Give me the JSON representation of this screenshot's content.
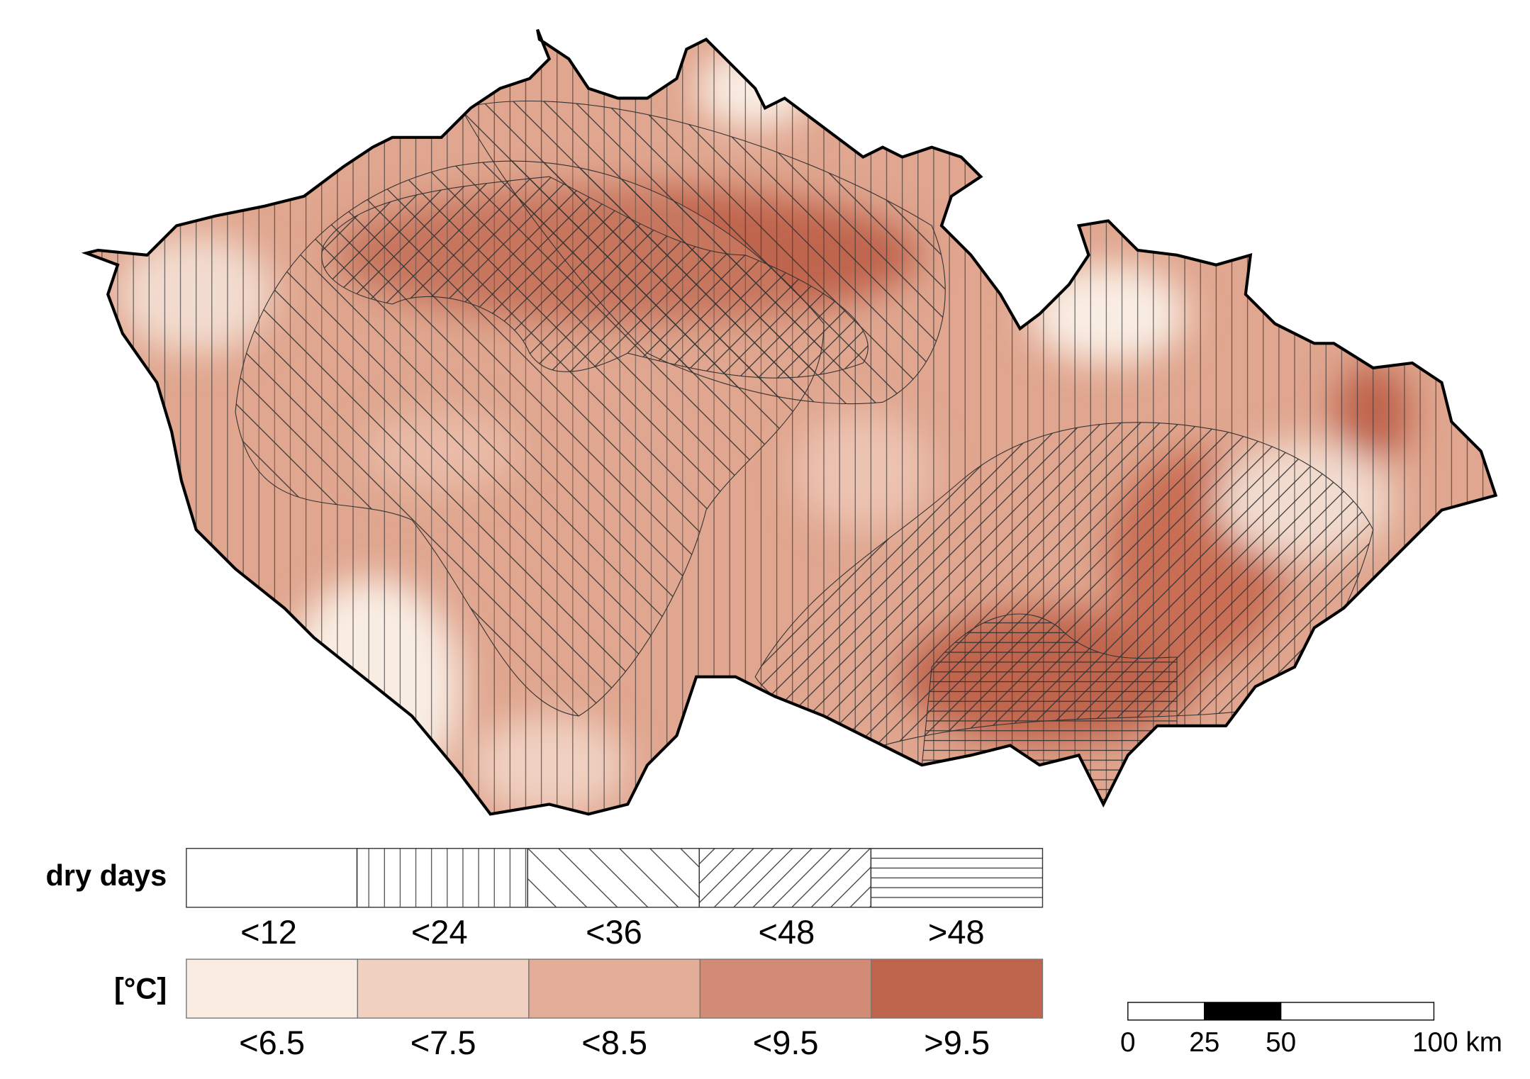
{
  "legend": {
    "dry_days": {
      "title": "dry days",
      "items": [
        "<12",
        "<24",
        "<36",
        "<48",
        ">48"
      ]
    },
    "temperature": {
      "title": "[°C]",
      "items": [
        "<6.5",
        "<7.5",
        "<8.5",
        "<9.5",
        ">9.5"
      ],
      "colors": [
        "#f9ede3",
        "#f0d0c1",
        "#e3ad98",
        "#d28c75",
        "#c0654d"
      ]
    }
  },
  "scale_bar": {
    "labels": [
      "0",
      "25",
      "50",
      "100 km"
    ]
  }
}
